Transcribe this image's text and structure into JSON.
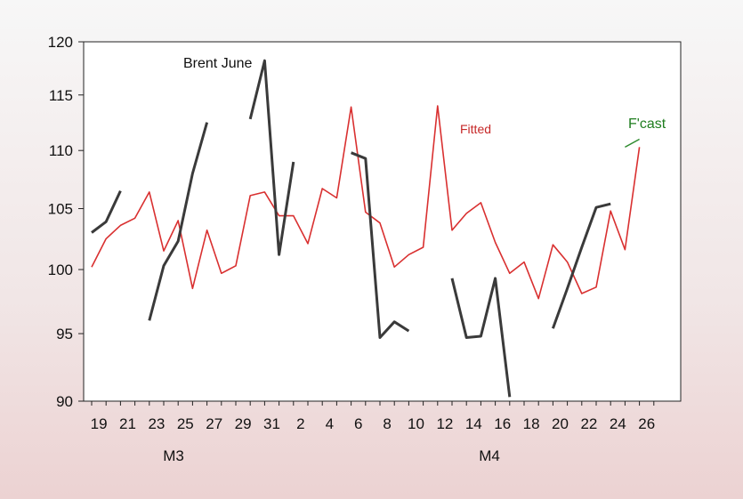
{
  "chart_data": {
    "type": "line",
    "x": [
      "19",
      "20",
      "21",
      "22",
      "23",
      "24",
      "25",
      "26",
      "27",
      "28",
      "29",
      "30",
      "31",
      "1",
      "2",
      "3",
      "4",
      "5",
      "6",
      "7",
      "8",
      "9",
      "10",
      "11",
      "12",
      "13",
      "14",
      "15",
      "16",
      "17",
      "18",
      "19",
      "20",
      "21",
      "22",
      "23",
      "24",
      "25",
      "26"
    ],
    "x_tick_labels": [
      "19",
      "21",
      "23",
      "25",
      "27",
      "29",
      "31",
      "2",
      "4",
      "6",
      "8",
      "10",
      "12",
      "14",
      "16",
      "18",
      "20",
      "22",
      "24",
      "26"
    ],
    "month_labels": [
      "M3",
      "M4"
    ],
    "yticks": [
      90,
      95,
      100,
      105,
      110,
      115,
      120
    ],
    "ylim": [
      90,
      120
    ],
    "y_scale": "log",
    "series": [
      {
        "name": "Brent June",
        "color": "#3a3a3a",
        "values": [
          103.0,
          103.9,
          106.5,
          null,
          96.0,
          100.3,
          102.3,
          108.0,
          112.5,
          null,
          null,
          112.8,
          118.2,
          101.2,
          109.0,
          null,
          null,
          null,
          109.8,
          109.3,
          94.7,
          95.9,
          95.2,
          null,
          null,
          99.3,
          94.7,
          94.8,
          99.3,
          90.3,
          null,
          null,
          95.4,
          98.5,
          101.8,
          105.1,
          105.4,
          null,
          null
        ]
      },
      {
        "name": "Fitted",
        "color": "#d93030",
        "values": [
          100.2,
          102.5,
          103.6,
          104.2,
          106.4,
          101.5,
          104.0,
          98.5,
          103.2,
          99.7,
          100.3,
          106.1,
          106.4,
          104.4,
          104.4,
          102.1,
          106.7,
          105.9,
          113.9,
          104.7,
          103.8,
          100.2,
          101.2,
          101.8,
          114.0,
          103.2,
          104.6,
          105.5,
          102.2,
          99.7,
          100.6,
          97.7,
          102.0,
          100.6,
          98.1,
          98.6,
          104.8,
          101.6,
          110.3
        ]
      },
      {
        "name": "F'cast",
        "color": "#2e8b2e",
        "values": [
          null,
          null,
          null,
          null,
          null,
          null,
          null,
          null,
          null,
          null,
          null,
          null,
          null,
          null,
          null,
          null,
          null,
          null,
          null,
          null,
          null,
          null,
          null,
          null,
          null,
          null,
          null,
          null,
          null,
          null,
          null,
          null,
          null,
          null,
          null,
          null,
          null,
          110.3,
          111.0
        ]
      }
    ],
    "annotations": [
      "Brent June",
      "Fitted",
      "F'cast"
    ]
  }
}
